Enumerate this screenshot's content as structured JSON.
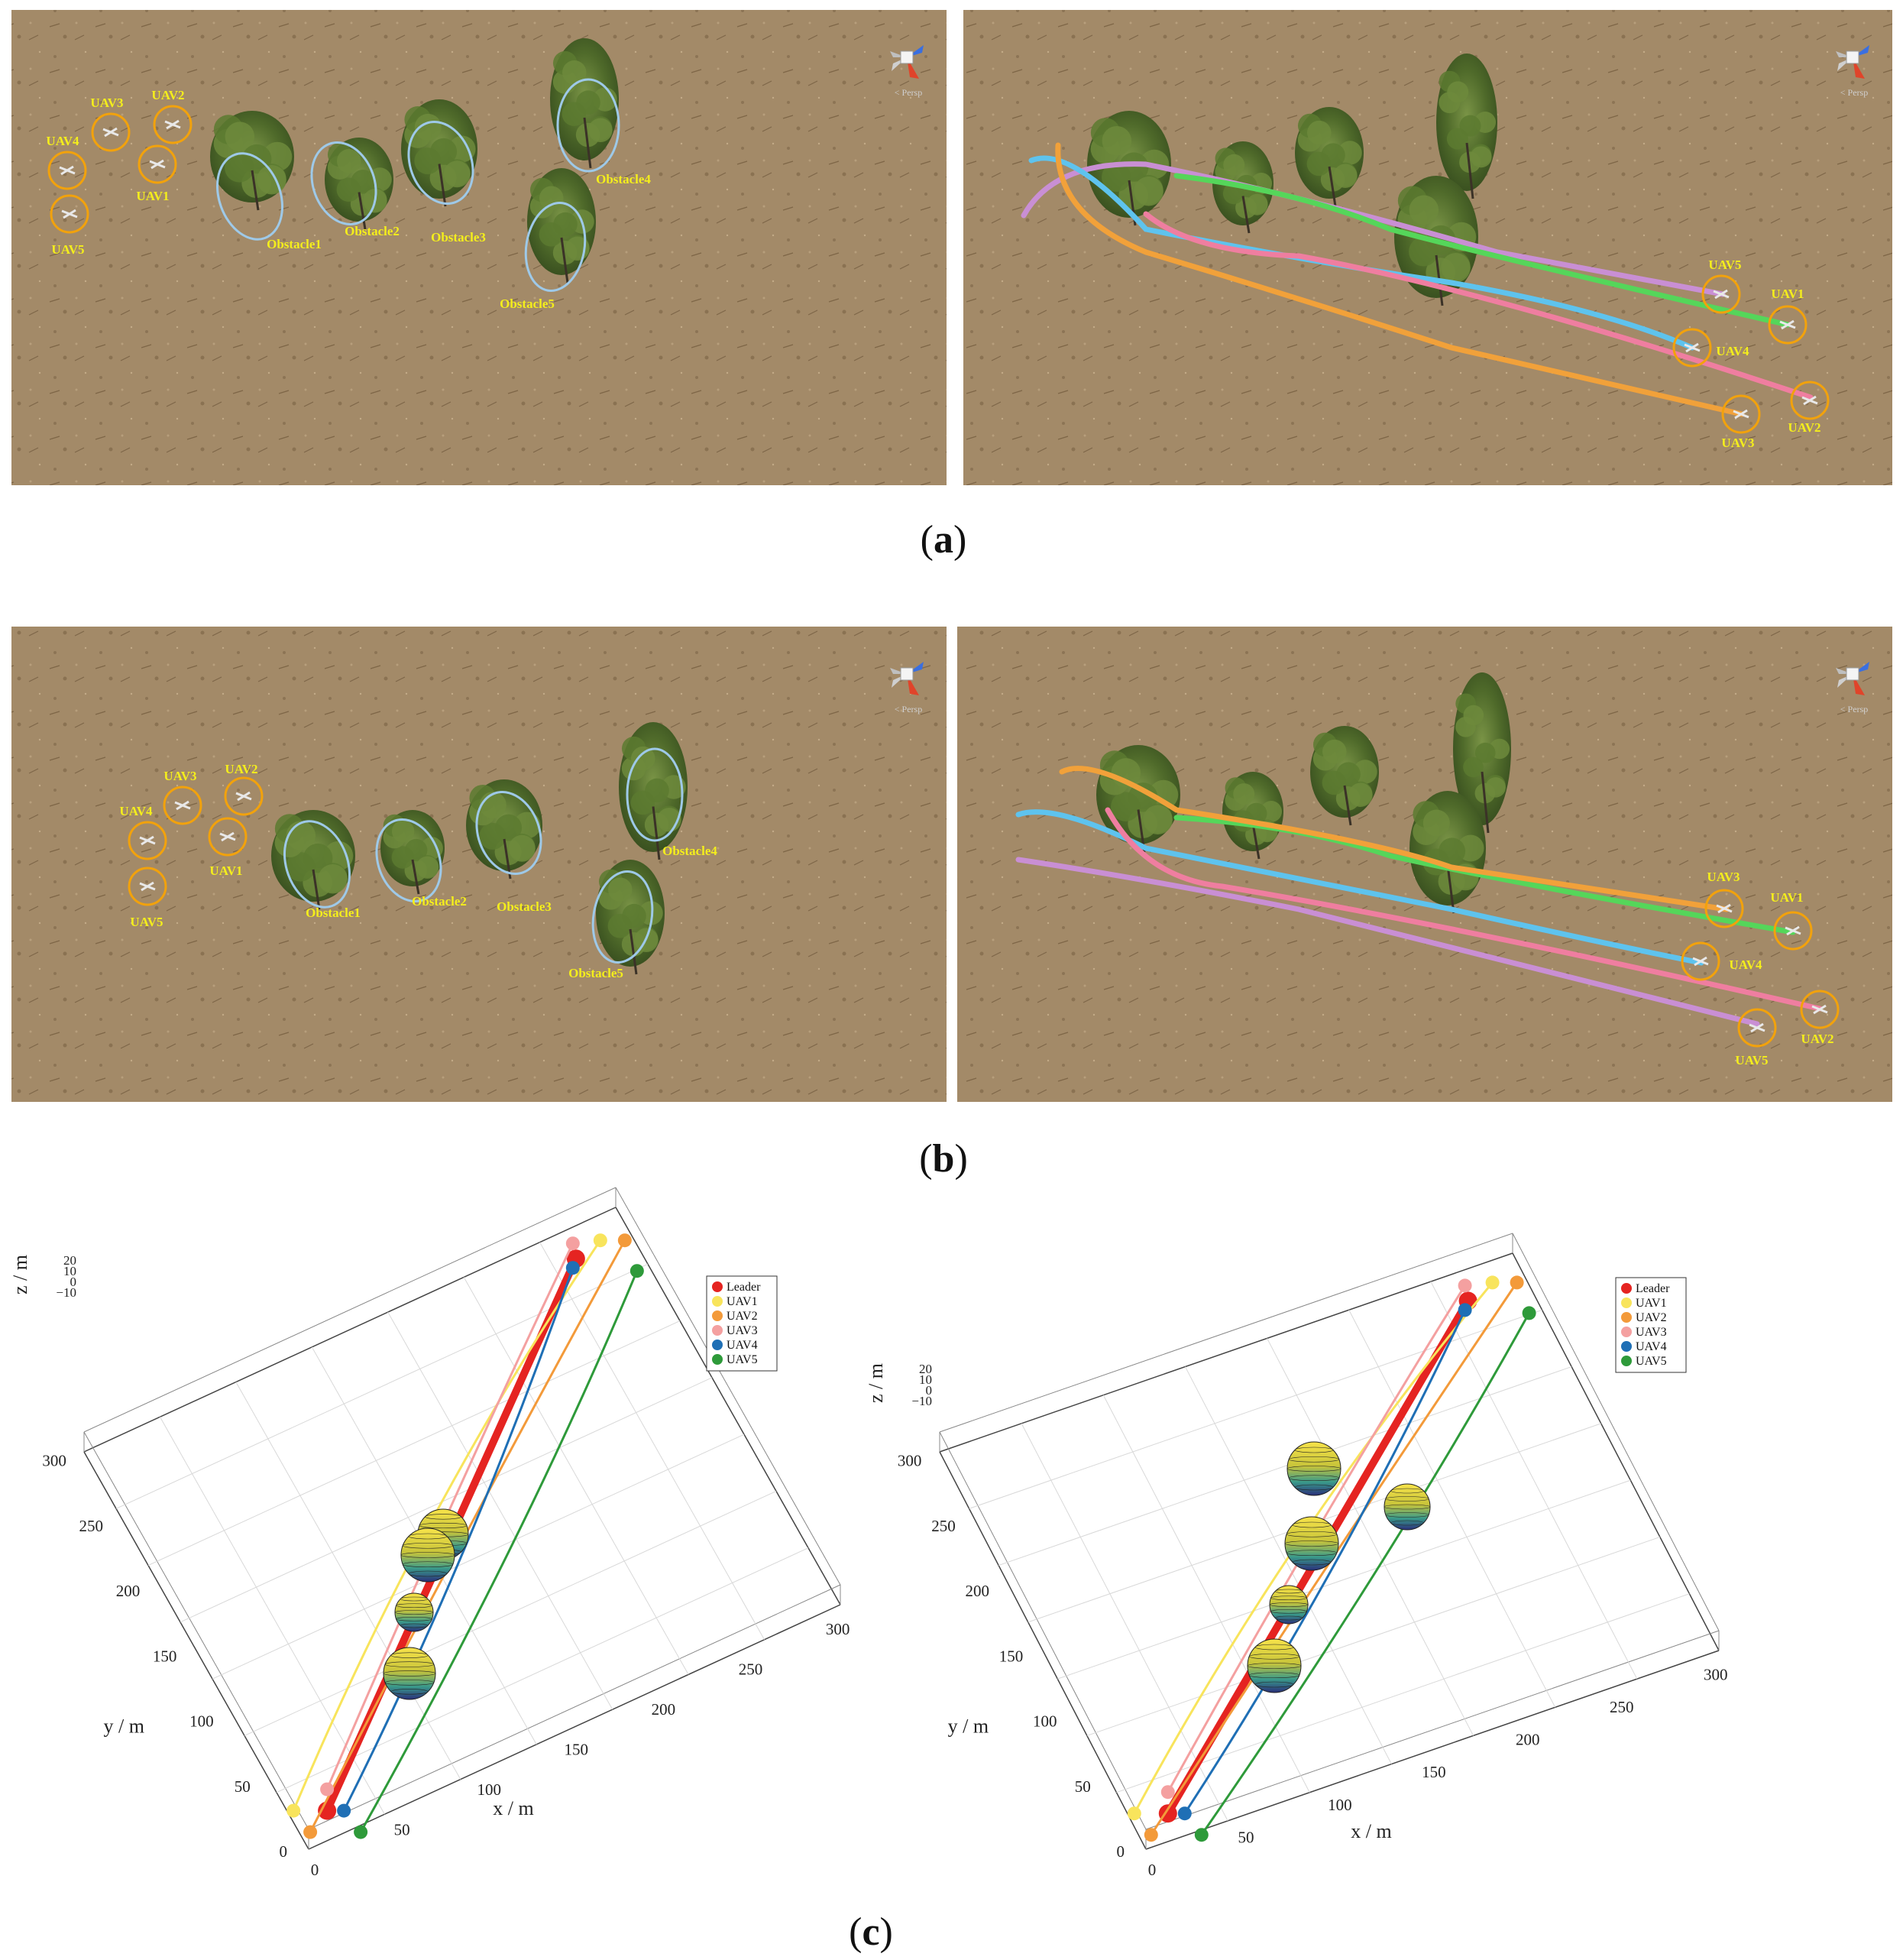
{
  "captions": [
    "a",
    "b",
    "c"
  ],
  "scene_labels": {
    "uav": [
      "UAV1",
      "UAV2",
      "UAV3",
      "UAV4",
      "UAV5"
    ],
    "obstacles": [
      "Obstacle1",
      "Obstacle2",
      "Obstacle3",
      "Obstacle4",
      "Obstacle5"
    ],
    "view_hint": "< Persp"
  },
  "colors": {
    "ground": "#a38a68",
    "tree": "#4f6a2a",
    "uav_ring": "#f2a20c",
    "obstacle_ring": "#9ec9e8",
    "label": "#f4ee1c",
    "leader": "#e52421",
    "uav1": "#f8e45c",
    "uav2": "#f39a3a",
    "uav3": "#f4a0a0",
    "uav4": "#1f6fb5",
    "uav5": "#2e9a3a"
  },
  "chart_data": [
    {
      "type": "line",
      "subtype": "3d-trajectory",
      "xlabel": "x / m",
      "ylabel": "y / m",
      "zlabel": "z / m",
      "x_ticks": [
        "0",
        "50",
        "100",
        "150",
        "200",
        "250",
        "300"
      ],
      "y_ticks": [
        "0",
        "50",
        "100",
        "150",
        "200",
        "250",
        "300"
      ],
      "z_ticks": [
        "20",
        "10",
        "0",
        "−10"
      ],
      "legend": [
        "Leader",
        "UAV1",
        "UAV2",
        "UAV3",
        "UAV4",
        "UAV5"
      ],
      "legend_position": "top-right",
      "grid": true,
      "obstacles": 4
    },
    {
      "type": "line",
      "subtype": "3d-trajectory",
      "xlabel": "x / m",
      "ylabel": "y / m",
      "zlabel": "z / m",
      "x_ticks": [
        "0",
        "50",
        "100",
        "150",
        "200",
        "250",
        "300"
      ],
      "y_ticks": [
        "0",
        "50",
        "100",
        "150",
        "200",
        "250",
        "300"
      ],
      "z_ticks": [
        "20",
        "10",
        "0",
        "−10"
      ],
      "legend": [
        "Leader",
        "UAV1",
        "UAV2",
        "UAV3",
        "UAV4",
        "UAV5"
      ],
      "legend_position": "top-right",
      "grid": true,
      "obstacles": 5
    }
  ]
}
